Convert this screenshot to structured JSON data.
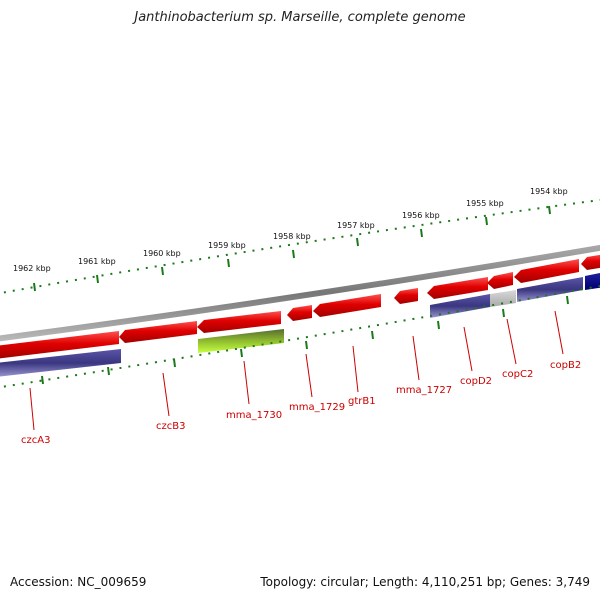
{
  "title": "Janthinobacterium sp. Marseille, complete genome",
  "footer": {
    "accession": "Accession: NC_009659",
    "topology": "Topology: circular; Length: 4,110,251 bp; Genes: 3,749"
  },
  "colors": {
    "forward_gene": "#ee1111",
    "reverse_gene": "#3f3c88",
    "highlight_gene": "#9acd32",
    "grey_gene": "#bbbbbb",
    "backbone": "#888888",
    "ticks": "#1a7a1a",
    "label": "#cc0000"
  },
  "ruler_labels": [
    "1962 kbp",
    "1961 kbp",
    "1960 kbp",
    "1959 kbp",
    "1958 kbp",
    "1957 kbp",
    "1956 kbp",
    "1955 kbp",
    "1954 kbp"
  ],
  "gene_labels": [
    "czcA3",
    "czcB3",
    "mma_1730",
    "mma_1729",
    "gtrB1",
    "mma_1727",
    "copD2",
    "copC2",
    "copB2"
  ]
}
